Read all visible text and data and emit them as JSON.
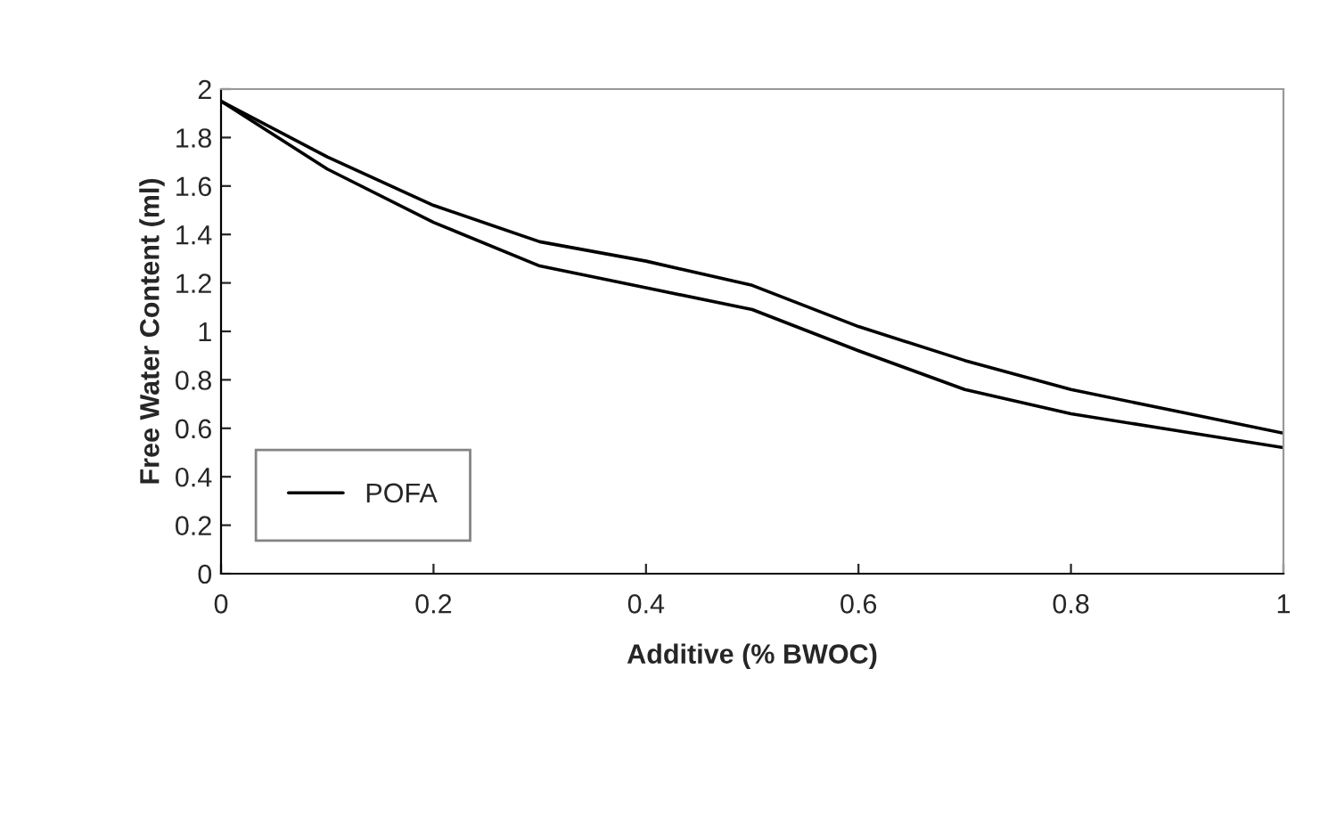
{
  "chart_data": {
    "type": "line",
    "xlabel": "Additive (% BWOC)",
    "ylabel": "Free Water Content (ml)",
    "x": [
      0,
      0.1,
      0.2,
      0.3,
      0.4,
      0.5,
      0.6,
      0.7,
      0.8,
      0.9,
      1.0
    ],
    "series": [
      {
        "name": "POFA",
        "color": "#000000",
        "values": [
          1.95,
          1.72,
          1.52,
          1.37,
          1.29,
          1.19,
          1.02,
          0.88,
          0.76,
          0.67,
          0.58
        ]
      },
      {
        "color": "#000000",
        "values": [
          1.95,
          1.67,
          1.45,
          1.27,
          1.18,
          1.09,
          0.92,
          0.76,
          0.66,
          0.59,
          0.52
        ]
      }
    ],
    "xlim": [
      0,
      1
    ],
    "xticks": [
      0,
      0.2,
      0.4,
      0.6,
      0.8,
      1
    ],
    "ylim": [
      0,
      2
    ],
    "yticks": [
      0,
      0.2,
      0.4,
      0.6,
      0.8,
      1,
      1.2,
      1.4,
      1.6,
      1.8,
      2
    ],
    "grid": false,
    "legend": "lower left",
    "marker": "none",
    "line_style": "solid"
  }
}
